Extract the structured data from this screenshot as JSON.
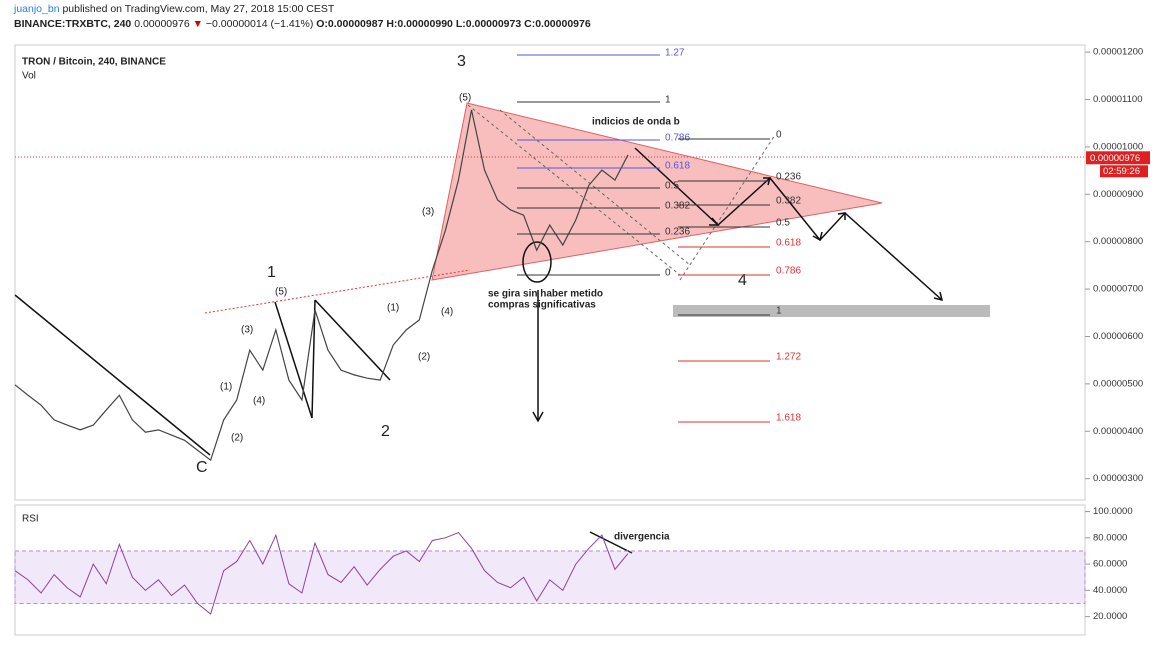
{
  "header": {
    "author": "juanjo_bn",
    "published": "published on TradingView.com, May 27, 2018 15:00 CEST",
    "symbol": "BINANCE:TRXBTC, 240",
    "last": "0.00000976",
    "arrow": "▼",
    "change": "−0.00000014 (−1.41%)",
    "open": "O:0.00000987",
    "high": "H:0.00000990",
    "low": "L:0.00000973",
    "close": "C:0.00000976"
  },
  "legend": {
    "title": "TRON / Bitcoin, 240, BINANCE",
    "volume": "Vol",
    "rsi": "RSI"
  },
  "price_axis": {
    "ylim": [
      2.55e-06,
      1.215e-05
    ],
    "yticks": [
      {
        "value": 1.2e-05,
        "label": "0.00001200"
      },
      {
        "value": 1.1e-05,
        "label": "0.00001100"
      },
      {
        "value": 1e-05,
        "label": "0.00001000"
      },
      {
        "value": 9e-06,
        "label": "0.00000900"
      },
      {
        "value": 8e-06,
        "label": "0.00000800"
      },
      {
        "value": 7e-06,
        "label": "0.00000700"
      },
      {
        "value": 6e-06,
        "label": "0.00000600"
      },
      {
        "value": 5e-06,
        "label": "0.00000500"
      },
      {
        "value": 4e-06,
        "label": "0.00000400"
      },
      {
        "value": 3e-06,
        "label": "0.00000300"
      }
    ],
    "current": {
      "value": 9.76e-06,
      "label": "0.00000976",
      "countdown": "02:59:26"
    }
  },
  "price": {
    "color": "#444444",
    "values": [
      4.98e-06,
      4.76e-06,
      4.55e-06,
      4.24e-06,
      4.13e-06,
      4.03e-06,
      4.13e-06,
      4.45e-06,
      4.76e-06,
      4.24e-06,
      3.98e-06,
      4.03e-06,
      3.92e-06,
      3.81e-06,
      3.6e-06,
      3.39e-06,
      4.24e-06,
      4.66e-06,
      5.71e-06,
      5.29e-06,
      6.14e-06,
      5.08e-06,
      4.66e-06,
      6.56e-06,
      5.71e-06,
      5.29e-06,
      5.19e-06,
      5.12e-06,
      5.08e-06,
      5.82e-06,
      6.14e-06,
      6.35e-06,
      7.4e-06,
      8.24e-06,
      9.3e-06,
      1.078e-05,
      9.51e-06,
      8.88e-06,
      8.67e-06,
      8.56e-06,
      7.82e-06,
      8.35e-06,
      7.93e-06,
      8.46e-06,
      9.19e-06,
      9.51e-06,
      9.3e-06,
      9.83e-06
    ]
  },
  "rsi": {
    "color": "#8e3fae",
    "ylim": [
      6,
      105
    ],
    "band": [
      30,
      70
    ],
    "yticks": [
      {
        "value": 100,
        "label": "100.0000"
      },
      {
        "value": 80,
        "label": "80.0000"
      },
      {
        "value": 60,
        "label": "60.0000"
      },
      {
        "value": 40,
        "label": "40.0000"
      },
      {
        "value": 20,
        "label": "20.0000"
      }
    ],
    "values": [
      55,
      48,
      38,
      52,
      42,
      35,
      60,
      45,
      75,
      50,
      40,
      48,
      36,
      44,
      30,
      22,
      55,
      62,
      78,
      60,
      82,
      45,
      38,
      76,
      52,
      46,
      58,
      44,
      56,
      66,
      70,
      62,
      78,
      80,
      84,
      72,
      55,
      46,
      42,
      50,
      32,
      48,
      40,
      60,
      72,
      82,
      56,
      68
    ]
  },
  "annotations": {
    "waves": [
      "3",
      "(5)",
      "(3)",
      "(4)",
      "(2)",
      "(1)",
      "1",
      "(5)",
      "(3)",
      "(1)",
      "(4)",
      "(2)",
      "C",
      "2",
      "4"
    ],
    "notes": [
      "indicios de onda b",
      "se gira sin haber metido",
      "compras significativas",
      "divergencia"
    ]
  },
  "fib_a": [
    1.27,
    1,
    0.786,
    0.618,
    0.5,
    0.382,
    0.236,
    0
  ],
  "fib_b": [
    0,
    0.236,
    0.382,
    0.5,
    0.618,
    0.786,
    1,
    1.272,
    1.618
  ]
}
